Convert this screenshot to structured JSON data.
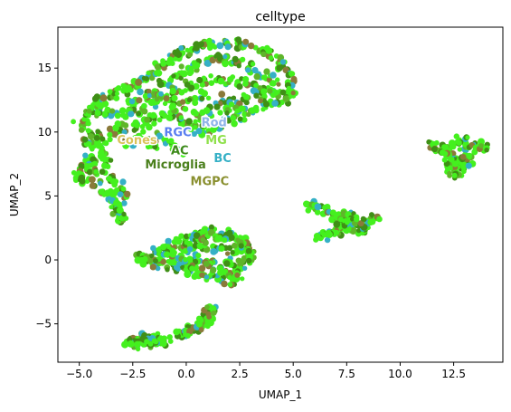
{
  "chart_data": {
    "type": "scatter",
    "title": "celltype",
    "xlabel": "UMAP_1",
    "ylabel": "UMAP_2",
    "xlim": [
      -6.0,
      14.8
    ],
    "ylim": [
      -8.0,
      18.2
    ],
    "xticks": [
      -5.0,
      -2.5,
      0.0,
      2.5,
      5.0,
      7.5,
      10.0,
      12.5
    ],
    "xtick_labels": [
      "−5.0",
      "−2.5",
      "0.0",
      "2.5",
      "5.0",
      "7.5",
      "10.0",
      "12.5"
    ],
    "yticks": [
      -5,
      0,
      5,
      10,
      15
    ],
    "ytick_labels": [
      "−5",
      "0",
      "5",
      "10",
      "15"
    ],
    "grid": false,
    "legend": "none (labels placed on data)",
    "colors": {
      "dominant": "#44f01e",
      "dark_green": "#3f8f16",
      "mid_green": "#5fb52a",
      "cyan": "#35b0c6",
      "brown": "#8a7a3a"
    },
    "point_clusters": [
      {
        "description_key": "main_upper_arc",
        "points": [
          [
            -5.0,
            10.5
          ],
          [
            -4.8,
            11.0
          ],
          [
            -4.6,
            11.6
          ],
          [
            -4.3,
            12.0
          ],
          [
            -4.0,
            12.4
          ],
          [
            -3.7,
            12.8
          ],
          [
            -3.4,
            13.0
          ],
          [
            -3.0,
            13.3
          ],
          [
            -2.6,
            13.6
          ],
          [
            -2.2,
            13.9
          ],
          [
            -1.8,
            14.4
          ],
          [
            -1.5,
            14.9
          ],
          [
            -1.2,
            15.3
          ],
          [
            -0.9,
            15.7
          ],
          [
            -0.5,
            16.0
          ],
          [
            -0.1,
            16.3
          ],
          [
            0.3,
            16.6
          ],
          [
            0.8,
            16.8
          ],
          [
            1.3,
            16.9
          ],
          [
            1.8,
            16.9
          ],
          [
            2.3,
            16.9
          ],
          [
            2.8,
            16.8
          ],
          [
            3.3,
            16.5
          ],
          [
            3.8,
            16.2
          ],
          [
            4.2,
            15.7
          ],
          [
            4.5,
            15.2
          ],
          [
            4.8,
            14.5
          ],
          [
            5.0,
            13.7
          ],
          [
            4.9,
            13.0
          ],
          [
            4.5,
            12.5
          ],
          [
            4.0,
            12.2
          ],
          [
            3.5,
            12.0
          ],
          [
            3.0,
            11.6
          ],
          [
            2.5,
            11.3
          ],
          [
            2.0,
            11.0
          ],
          [
            1.5,
            10.5
          ],
          [
            1.0,
            10.0
          ],
          [
            0.5,
            10.2
          ],
          [
            0.0,
            10.6
          ],
          [
            -0.5,
            11.2
          ],
          [
            -1.0,
            11.4
          ],
          [
            -1.5,
            11.0
          ],
          [
            -2.0,
            10.6
          ],
          [
            -2.5,
            10.5
          ],
          [
            -3.0,
            10.3
          ],
          [
            -3.4,
            10.0
          ],
          [
            -3.8,
            9.5
          ],
          [
            -4.2,
            8.8
          ],
          [
            -4.5,
            8.0
          ],
          [
            -4.8,
            7.2
          ],
          [
            -5.0,
            6.6
          ],
          [
            -4.7,
            6.2
          ],
          [
            -4.2,
            6.0
          ],
          [
            -3.8,
            5.5
          ],
          [
            -3.6,
            5.0
          ],
          [
            -3.4,
            4.4
          ],
          [
            -3.2,
            3.8
          ],
          [
            -3.0,
            3.2
          ],
          [
            -2.5,
            12.2
          ],
          [
            -2.0,
            12.8
          ],
          [
            -1.5,
            13.2
          ],
          [
            -1.0,
            13.8
          ],
          [
            -0.5,
            14.3
          ],
          [
            0.0,
            14.8
          ],
          [
            0.5,
            15.2
          ],
          [
            1.0,
            15.6
          ],
          [
            1.5,
            15.8
          ],
          [
            2.0,
            15.7
          ],
          [
            2.5,
            15.4
          ],
          [
            3.0,
            15.0
          ],
          [
            3.5,
            14.6
          ],
          [
            4.0,
            14.1
          ],
          [
            4.3,
            13.4
          ],
          [
            3.8,
            13.2
          ],
          [
            3.2,
            13.5
          ],
          [
            2.6,
            13.8
          ],
          [
            2.0,
            14.0
          ],
          [
            1.4,
            14.2
          ],
          [
            0.8,
            14.0
          ],
          [
            0.2,
            13.6
          ],
          [
            -0.4,
            13.2
          ],
          [
            -1.0,
            12.7
          ],
          [
            -1.6,
            12.2
          ],
          [
            -2.2,
            11.7
          ],
          [
            -2.8,
            11.4
          ],
          [
            -3.4,
            11.4
          ],
          [
            -4.0,
            11.2
          ],
          [
            -4.4,
            10.0
          ],
          [
            -4.2,
            9.2
          ],
          [
            -3.9,
            8.4
          ],
          [
            -4.4,
            7.2
          ],
          [
            -4.0,
            6.8
          ],
          [
            -3.6,
            6.4
          ],
          [
            -3.2,
            5.8
          ],
          [
            -3.0,
            4.8
          ],
          [
            -3.3,
            4.0
          ],
          [
            1.6,
            12.6
          ],
          [
            2.2,
            12.4
          ],
          [
            2.8,
            12.6
          ],
          [
            3.4,
            12.8
          ],
          [
            0.9,
            12.8
          ],
          [
            0.3,
            12.4
          ],
          [
            -0.3,
            12.0
          ],
          [
            -0.8,
            12.3
          ],
          [
            1.2,
            11.6
          ],
          [
            1.8,
            11.8
          ],
          [
            2.4,
            11.9
          ],
          [
            -4.6,
            9.4
          ],
          [
            -3.8,
            7.6
          ],
          [
            -2.9,
            3.6
          ],
          [
            -1.2,
            9.6
          ],
          [
            -0.8,
            9.0
          ],
          [
            -0.4,
            8.6
          ],
          [
            -1.6,
            8.8
          ],
          [
            0.6,
            11.2
          ],
          [
            -2.0,
            9.8
          ],
          [
            -2.6,
            9.2
          ]
        ]
      },
      {
        "description_key": "middle_blob",
        "points": [
          [
            -2.2,
            0.1
          ],
          [
            -1.8,
            0.3
          ],
          [
            -1.4,
            0.6
          ],
          [
            -1.0,
            0.9
          ],
          [
            -0.6,
            1.2
          ],
          [
            -0.2,
            1.5
          ],
          [
            0.2,
            1.8
          ],
          [
            0.6,
            2.0
          ],
          [
            1.0,
            2.1
          ],
          [
            1.4,
            2.2
          ],
          [
            1.8,
            2.0
          ],
          [
            2.2,
            1.8
          ],
          [
            2.6,
            1.4
          ],
          [
            2.9,
            1.0
          ],
          [
            3.0,
            0.5
          ],
          [
            2.9,
            0.0
          ],
          [
            2.6,
            -0.4
          ],
          [
            2.2,
            -0.8
          ],
          [
            1.8,
            -1.1
          ],
          [
            1.4,
            -1.3
          ],
          [
            1.0,
            -1.2
          ],
          [
            0.6,
            -1.0
          ],
          [
            0.2,
            -0.8
          ],
          [
            -0.2,
            -0.6
          ],
          [
            -0.6,
            -0.5
          ],
          [
            -1.0,
            -0.4
          ],
          [
            -1.4,
            -0.3
          ],
          [
            -1.8,
            -0.2
          ],
          [
            -1.2,
            0.2
          ],
          [
            -0.6,
            0.4
          ],
          [
            0.0,
            0.6
          ],
          [
            0.6,
            0.8
          ],
          [
            1.2,
            0.9
          ],
          [
            1.8,
            0.8
          ],
          [
            2.4,
            0.5
          ],
          [
            -0.4,
            -0.1
          ],
          [
            0.4,
            0.0
          ],
          [
            1.2,
            0.0
          ],
          [
            2.0,
            -0.2
          ],
          [
            0.0,
            1.0
          ],
          [
            0.8,
            1.4
          ],
          [
            1.6,
            1.5
          ],
          [
            2.4,
            1.2
          ],
          [
            -0.8,
            0.7
          ],
          [
            0.2,
            -0.3
          ],
          [
            1.0,
            -0.5
          ],
          [
            1.8,
            -0.6
          ],
          [
            2.4,
            -1.4
          ],
          [
            2.0,
            -1.6
          ]
        ]
      },
      {
        "description_key": "lower_left_small",
        "points": [
          [
            -2.6,
            -6.4
          ],
          [
            -2.4,
            -6.2
          ],
          [
            -2.1,
            -6.1
          ],
          [
            -1.8,
            -6.2
          ],
          [
            -1.5,
            -6.1
          ],
          [
            -1.2,
            -6.3
          ],
          [
            -1.0,
            -6.4
          ],
          [
            -1.4,
            -6.5
          ],
          [
            -1.8,
            -6.5
          ],
          [
            -2.2,
            -6.5
          ],
          [
            -2.5,
            -6.6
          ],
          [
            -1.6,
            -6.3
          ]
        ]
      },
      {
        "description_key": "lower_center_small",
        "points": [
          [
            -0.2,
            -5.7
          ],
          [
            0.0,
            -5.5
          ],
          [
            0.2,
            -5.6
          ],
          [
            0.6,
            -5.2
          ],
          [
            0.8,
            -4.9
          ],
          [
            1.0,
            -4.6
          ],
          [
            1.1,
            -4.3
          ],
          [
            1.2,
            -4.0
          ],
          [
            0.9,
            -4.8
          ],
          [
            0.5,
            -5.3
          ]
        ]
      },
      {
        "description_key": "right_branched",
        "points": [
          [
            5.8,
            4.2
          ],
          [
            6.1,
            4.0
          ],
          [
            6.4,
            3.8
          ],
          [
            6.7,
            3.6
          ],
          [
            7.0,
            3.4
          ],
          [
            7.3,
            3.2
          ],
          [
            7.5,
            3.0
          ],
          [
            7.7,
            2.8
          ],
          [
            7.9,
            2.6
          ],
          [
            8.1,
            2.4
          ],
          [
            8.3,
            2.6
          ],
          [
            8.5,
            2.9
          ],
          [
            8.8,
            3.2
          ],
          [
            7.6,
            3.5
          ],
          [
            7.4,
            2.6
          ],
          [
            7.1,
            2.3
          ],
          [
            6.8,
            2.1
          ],
          [
            6.5,
            1.9
          ],
          [
            6.2,
            1.8
          ],
          [
            7.8,
            3.1
          ],
          [
            8.0,
            3.0
          ],
          [
            7.3,
            3.0
          ]
        ]
      },
      {
        "description_key": "far_right",
        "points": [
          [
            11.5,
            8.9
          ],
          [
            11.8,
            8.7
          ],
          [
            12.1,
            8.5
          ],
          [
            12.3,
            8.2
          ],
          [
            12.5,
            7.8
          ],
          [
            12.6,
            7.3
          ],
          [
            12.6,
            6.9
          ],
          [
            12.8,
            7.4
          ],
          [
            13.0,
            7.9
          ],
          [
            13.1,
            8.4
          ],
          [
            13.3,
            8.8
          ],
          [
            13.6,
            9.0
          ],
          [
            13.9,
            8.9
          ],
          [
            12.9,
            9.3
          ],
          [
            12.6,
            8.9
          ],
          [
            12.3,
            7.5
          ],
          [
            12.4,
            6.7
          ],
          [
            13.2,
            7.3
          ]
        ]
      }
    ],
    "annotations": [
      {
        "text": "Rod",
        "x": 1.3,
        "y": 10.7,
        "color": "#8fb4e8"
      },
      {
        "text": "RGC",
        "x": -0.4,
        "y": 9.9,
        "color": "#5a7ff0"
      },
      {
        "text": "MG",
        "x": 1.4,
        "y": 9.3,
        "color": "#8ee04a"
      },
      {
        "text": "Cones",
        "x": -2.3,
        "y": 9.3,
        "color": "#d8c35a"
      },
      {
        "text": "AC",
        "x": -0.3,
        "y": 8.5,
        "color": "#3d8a1a"
      },
      {
        "text": "BC",
        "x": 1.7,
        "y": 7.9,
        "color": "#35b0c6"
      },
      {
        "text": "Microglia",
        "x": -0.5,
        "y": 7.4,
        "color": "#4a7f1c"
      },
      {
        "text": "MGPC",
        "x": 1.1,
        "y": 6.1,
        "color": "#8a9030"
      }
    ]
  }
}
